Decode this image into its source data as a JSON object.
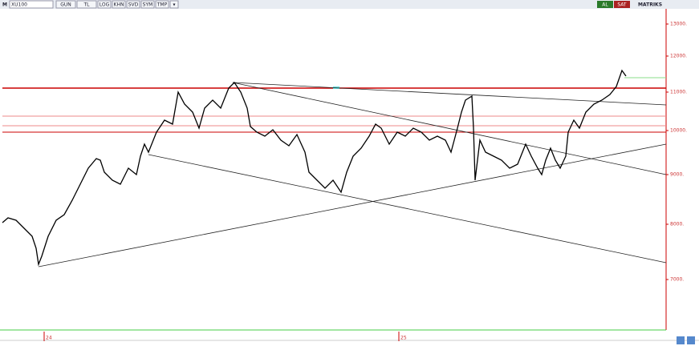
{
  "toolbar": {
    "menu": "M",
    "symbol": "XU100",
    "buttons": [
      "GUN",
      "TL",
      "LOG",
      "KHN",
      "SVD",
      "SYM",
      "TMP",
      "▾"
    ],
    "buy": "AL",
    "sell": "SAT",
    "brand": "MATRIKS"
  },
  "price_axis": {
    "labels": [
      "13000.",
      "12000.",
      "11000.",
      "10000.",
      "9000.",
      "8000.",
      "7000."
    ]
  },
  "time_axis": {
    "labels": [
      "24",
      "25"
    ]
  }
}
